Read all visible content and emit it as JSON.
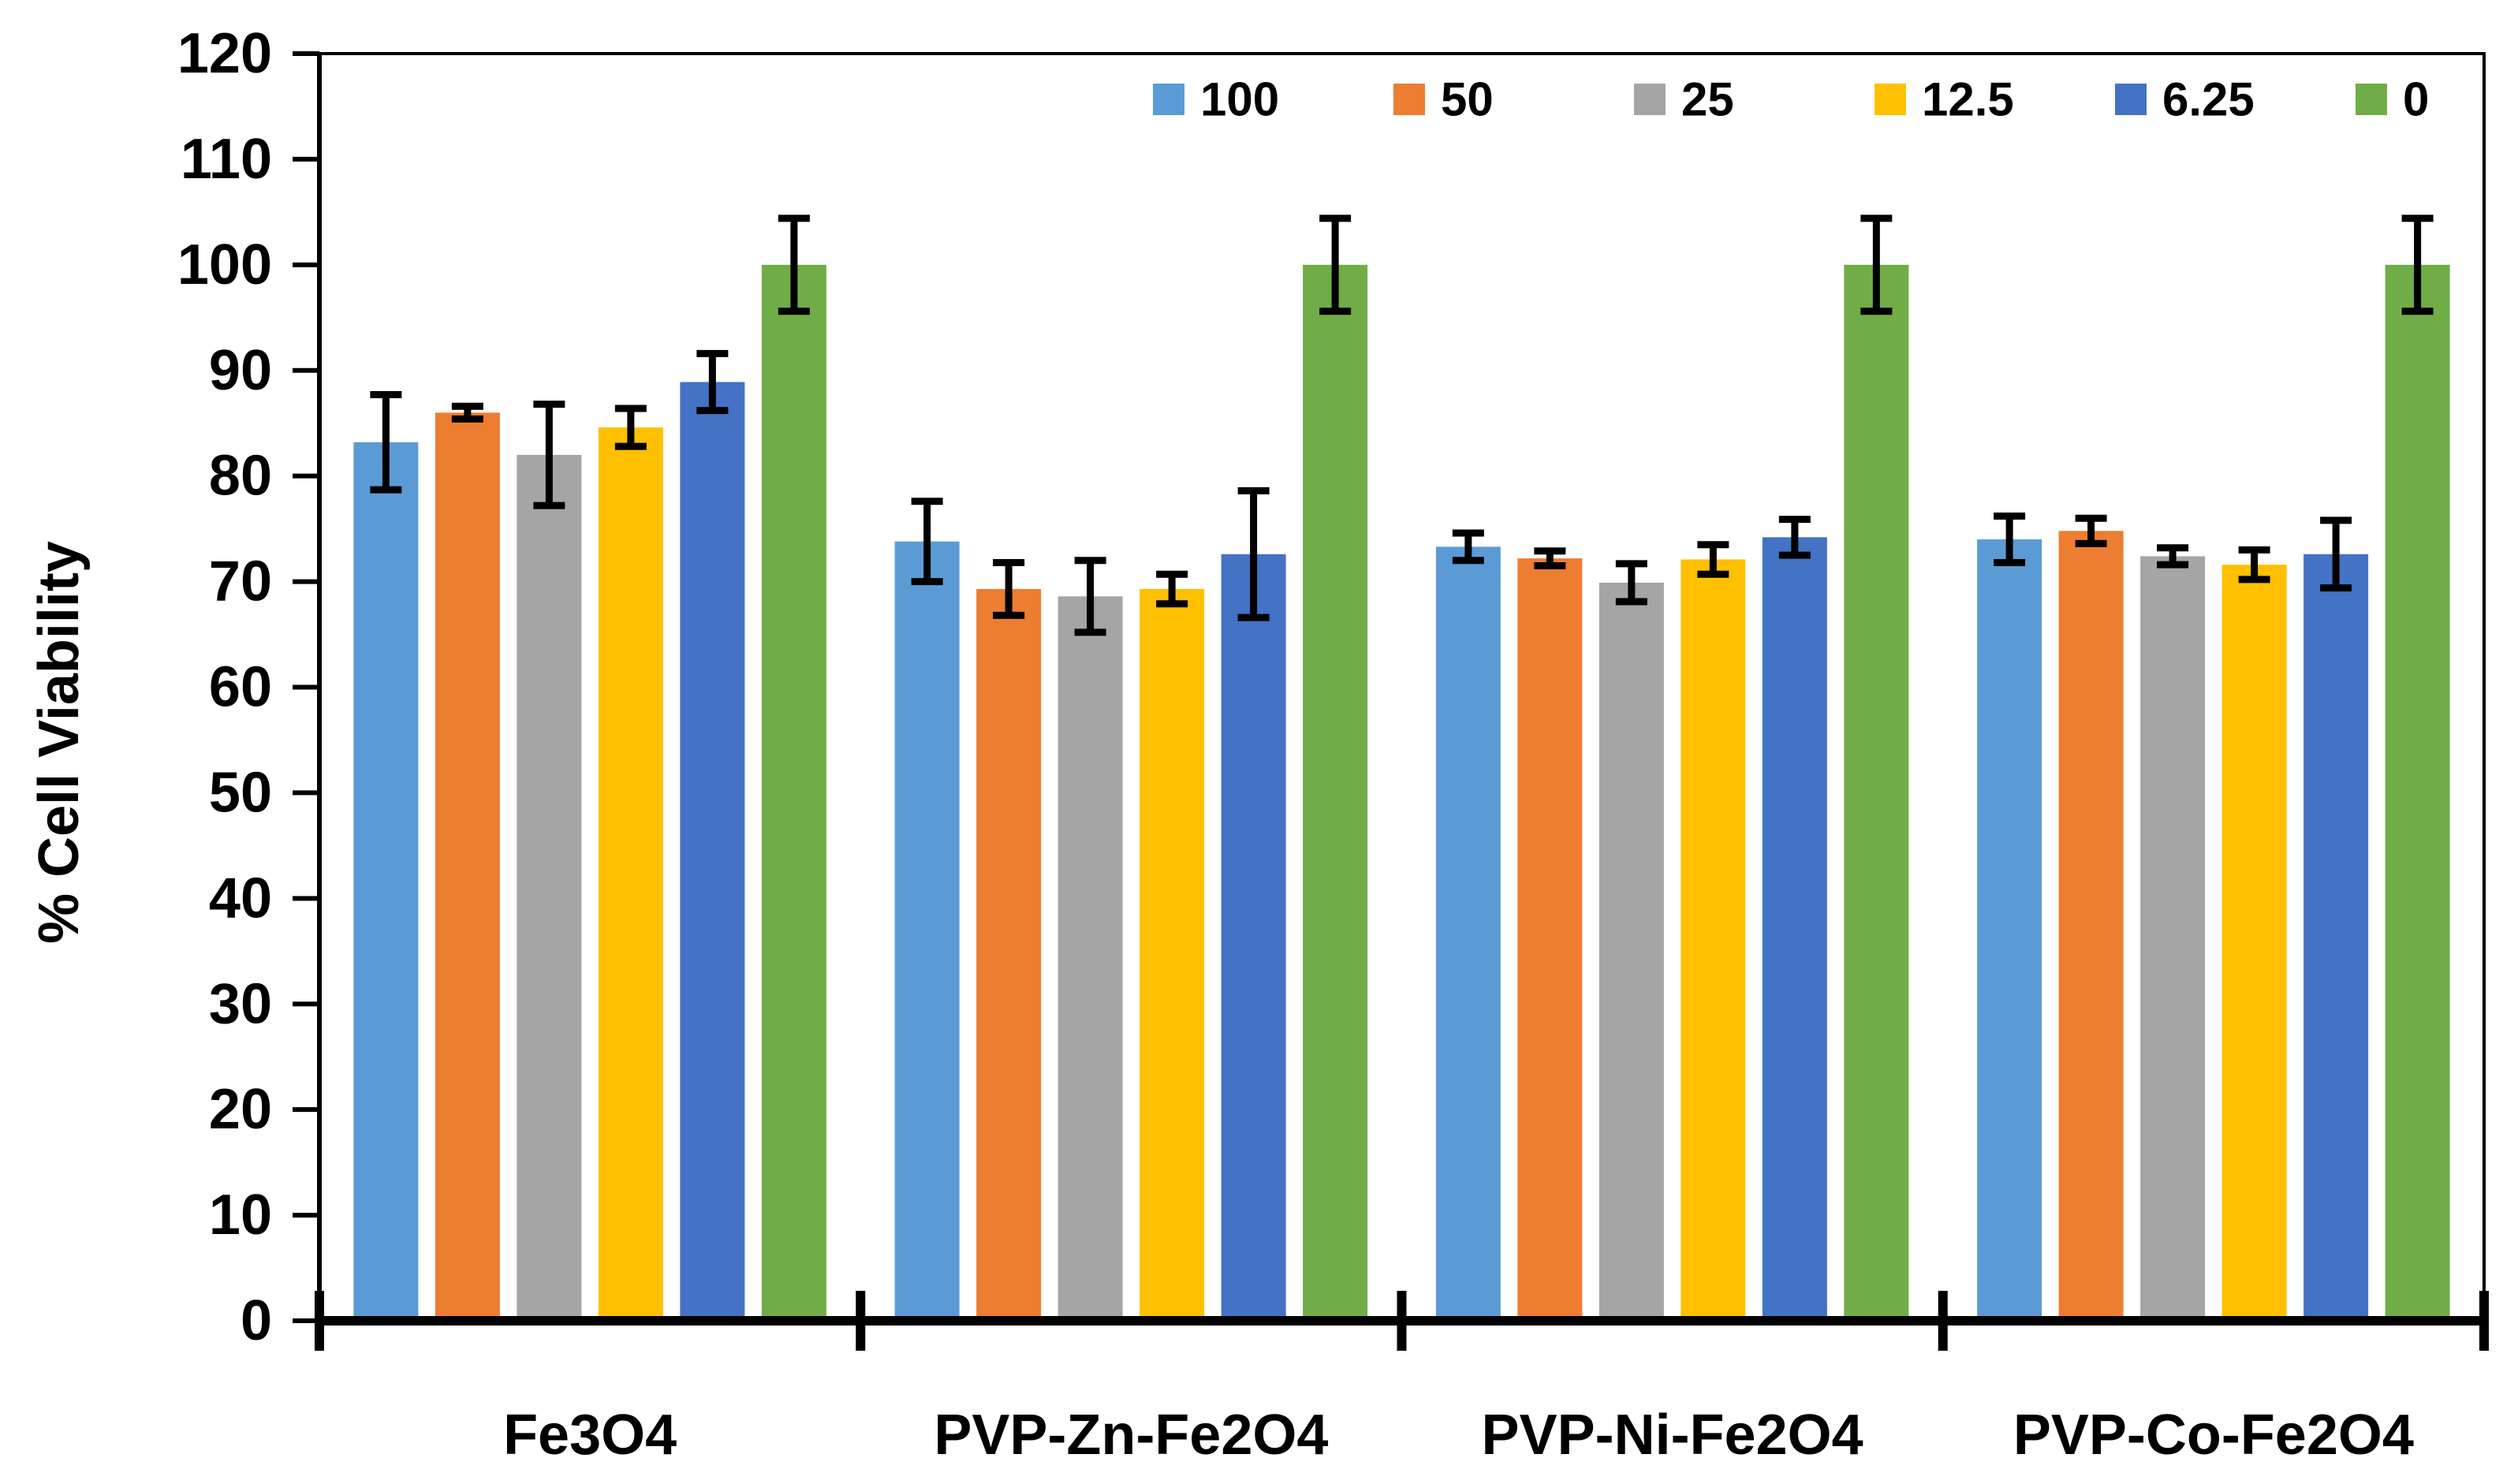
{
  "chart_data": {
    "type": "bar",
    "title": "",
    "xlabel": "",
    "ylabel": "% Cell Viability",
    "ylim": [
      0,
      120
    ],
    "yticks": [
      0,
      10,
      20,
      30,
      40,
      50,
      60,
      70,
      80,
      90,
      100,
      110,
      120
    ],
    "ytick_labels": [
      "0",
      "10",
      "20",
      "30",
      "40",
      "50",
      "60",
      "70",
      "80",
      "90",
      "100",
      "110",
      "120"
    ],
    "categories": [
      "Fe3O4",
      "PVP-Zn-Fe2O4",
      "PVP-Ni-Fe2O4",
      "PVP-Co-Fe2O4"
    ],
    "legend_position": "top-right",
    "grid": false,
    "series": [
      {
        "name": "100",
        "color": "#5B9BD5",
        "values": [
          83.2,
          73.8,
          73.3,
          74.0
        ],
        "errors": [
          4.5,
          3.8,
          1.3,
          2.2
        ]
      },
      {
        "name": "50",
        "color": "#ED7D31",
        "values": [
          86.0,
          69.3,
          72.2,
          74.8
        ],
        "errors": [
          0.6,
          2.5,
          0.7,
          1.2
        ]
      },
      {
        "name": "25",
        "color": "#A5A5A5",
        "values": [
          82.0,
          68.6,
          69.9,
          72.4
        ],
        "errors": [
          4.8,
          3.4,
          1.8,
          0.8
        ]
      },
      {
        "name": "12.5",
        "color": "#FFC000",
        "values": [
          84.6,
          69.3,
          72.1,
          71.6
        ],
        "errors": [
          1.8,
          1.4,
          1.4,
          1.4
        ]
      },
      {
        "name": "6.25",
        "color": "#4472C4",
        "values": [
          88.9,
          72.6,
          74.2,
          72.6
        ],
        "errors": [
          2.7,
          6.0,
          1.7,
          3.2
        ]
      },
      {
        "name": "0",
        "color": "#70AD47",
        "values": [
          100.0,
          100.0,
          100.0,
          100.0
        ],
        "errors": [
          4.4,
          4.4,
          4.4,
          4.4
        ]
      }
    ]
  }
}
